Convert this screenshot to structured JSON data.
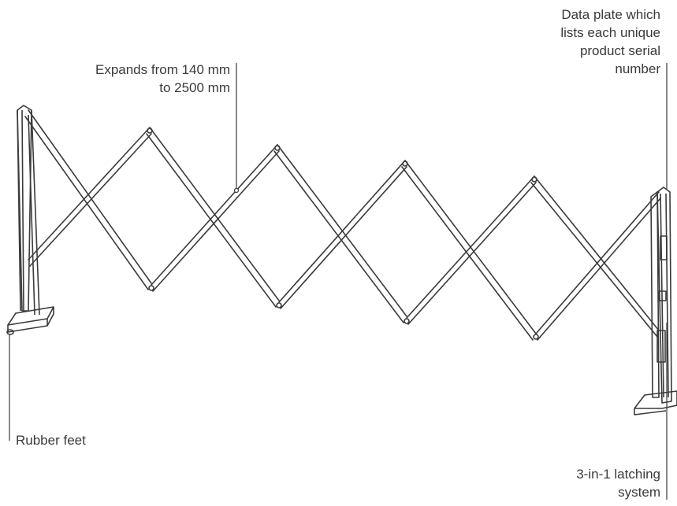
{
  "callouts": {
    "expands": {
      "lines": [
        "Expands from 140 mm",
        "to 2500 mm"
      ]
    },
    "data_plate": {
      "lines": [
        "Data plate which",
        "lists each unique",
        "product serial",
        "number"
      ]
    },
    "rubber_feet": {
      "lines": [
        "Rubber feet"
      ]
    },
    "latching": {
      "lines": [
        "3-in-1 latching",
        "system"
      ]
    }
  },
  "colors": {
    "stroke": "#3a3a3a",
    "text": "#3a3a3a",
    "background": "#ffffff"
  }
}
